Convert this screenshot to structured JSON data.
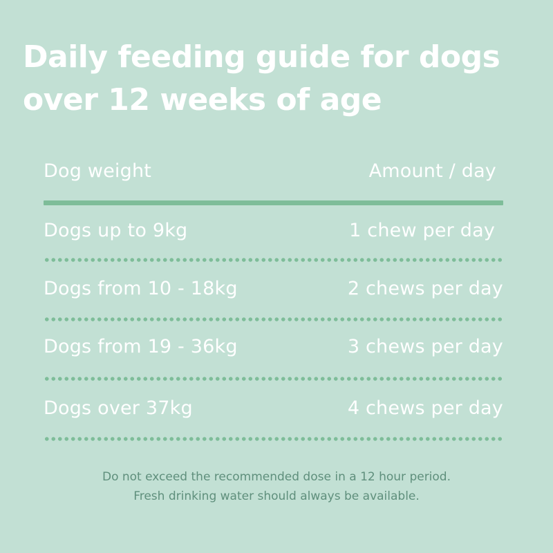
{
  "title": {
    "line1": "Daily feeding guide for dogs",
    "line2": "over 12 weeks of age"
  },
  "table": {
    "header": {
      "weight": "Dog weight",
      "amount": "Amount / day"
    },
    "rows": [
      {
        "weight": "Dogs up to 9kg",
        "amount": "1 chew per day"
      },
      {
        "weight": "Dogs from 10 - 18kg",
        "amount": "2 chews per day"
      },
      {
        "weight": "Dogs from 19 - 36kg",
        "amount": "3 chews per day"
      },
      {
        "weight": "Dogs over 37kg",
        "amount": "4 chews per day"
      }
    ]
  },
  "footer": {
    "line1": "Do not exceed the recommended dose in a 12 hour period.",
    "line2": "Fresh drinking water should always be available."
  },
  "colors": {
    "background": "#c2e0d4",
    "accent_rule": "#7ebd99",
    "footer_text": "#5f8f7c",
    "text": "#ffffff"
  }
}
